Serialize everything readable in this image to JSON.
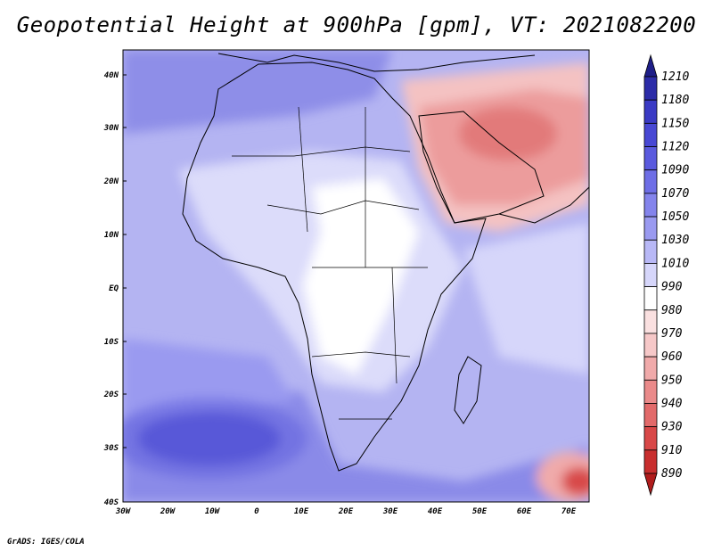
{
  "map": {
    "title": "Geopotential Height at 900hPa [gpm], VT: 2021082200",
    "variable": "Geopotential Height",
    "level": "900hPa",
    "units": "gpm",
    "valid_time": "2021082200",
    "credit": "GrADS: IGES/COLA",
    "lat_labels": [
      "40N",
      "30N",
      "20N",
      "10N",
      "EQ",
      "10S",
      "20S",
      "30S",
      "40S"
    ],
    "lon_labels": [
      "30W",
      "20W",
      "10W",
      "0",
      "10E",
      "20E",
      "30E",
      "40E",
      "50E",
      "60E",
      "70E"
    ],
    "colorbar": {
      "labels": [
        "1210",
        "1180",
        "1150",
        "1120",
        "1090",
        "1070",
        "1050",
        "1030",
        "1010",
        "990",
        "980",
        "970",
        "960",
        "950",
        "940",
        "930",
        "910",
        "890"
      ],
      "colors": [
        "#1e1e88",
        "#2c2ca8",
        "#3a3ac4",
        "#4848d4",
        "#5a5ade",
        "#6e6ee6",
        "#8484ec",
        "#9a9af0",
        "#b8b8f6",
        "#d6d6fa",
        "#ffffff",
        "#fae0e0",
        "#f6c8c8",
        "#f0aaaa",
        "#ea8a8a",
        "#e26a6a",
        "#d84848",
        "#c82e2e",
        "#b01c1c"
      ]
    }
  }
}
